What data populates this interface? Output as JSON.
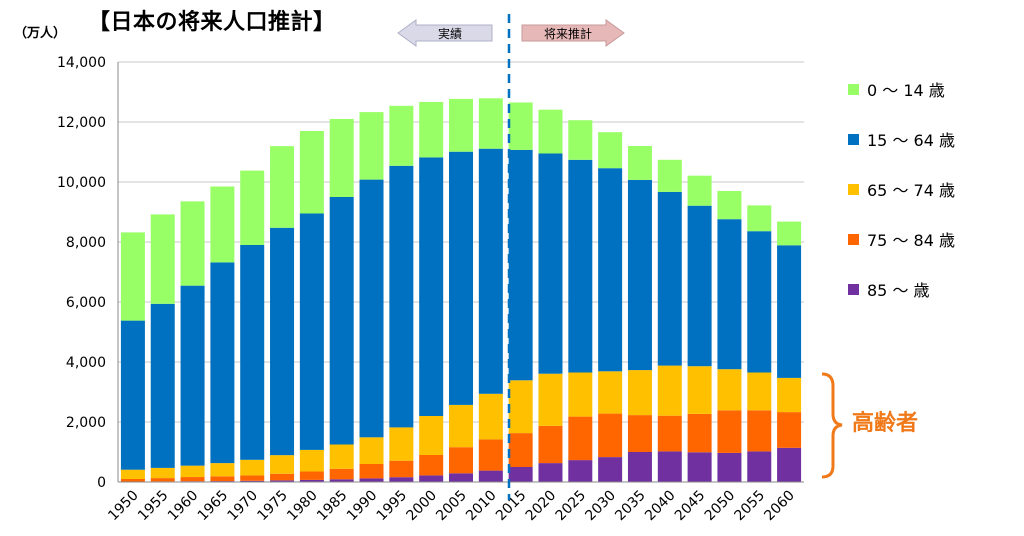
{
  "header": {
    "title": "【日本の将来人口推計】",
    "unit": "（万人）"
  },
  "arrows": {
    "actual_label": "実績",
    "forecast_label": "将来推計"
  },
  "annotation": {
    "elderly_label": "高齢者"
  },
  "colors": {
    "age_0_14": "#99ff66",
    "age_15_64": "#0070c0",
    "age_65_74": "#ffc000",
    "age_75_84": "#ff6600",
    "age_85_plus": "#7030a0",
    "divider": "#0070c0",
    "bracket": "#f07a1a",
    "arrow_actual": "#d9d9e8",
    "arrow_forecast": "#e6b8b8"
  },
  "legend": [
    {
      "label": "0 ～ 14 歳",
      "color": "#99ff66"
    },
    {
      "label": "15 ～ 64 歳",
      "color": "#0070c0"
    },
    {
      "label": "65 ～ 74 歳",
      "color": "#ffc000"
    },
    {
      "label": "75 ～ 84 歳",
      "color": "#ff6600"
    },
    {
      "label": "85 ～ 歳",
      "color": "#7030a0"
    }
  ],
  "chart_data": {
    "type": "bar",
    "stacked": true,
    "categories": [
      "1950",
      "1955",
      "1960",
      "1965",
      "1970",
      "1975",
      "1980",
      "1985",
      "1990",
      "1995",
      "2000",
      "2005",
      "2010",
      "2015",
      "2020",
      "2025",
      "2030",
      "2035",
      "2040",
      "2045",
      "2050",
      "2055",
      "2060"
    ],
    "ylim": [
      0,
      14000
    ],
    "yticks": [
      0,
      2000,
      4000,
      6000,
      8000,
      10000,
      12000,
      14000
    ],
    "ytick_labels": [
      "0",
      "2,000",
      "4,000",
      "6,000",
      "8,000",
      "10,000",
      "12,000",
      "14,000"
    ],
    "grid": true,
    "legend_position": "right",
    "series": [
      {
        "name": "85 ～ 歳",
        "values": [
          10,
          20,
          25,
          30,
          40,
          55,
          70,
          90,
          120,
          160,
          220,
          290,
          380,
          500,
          630,
          730,
          830,
          1000,
          1020,
          990,
          970,
          1020,
          1140
        ]
      },
      {
        "name": "75 ～ 84 歳",
        "values": [
          90,
          110,
          140,
          160,
          180,
          220,
          280,
          350,
          480,
          550,
          680,
          870,
          1040,
          1130,
          1240,
          1450,
          1450,
          1230,
          1190,
          1280,
          1420,
          1370,
          1190
        ]
      },
      {
        "name": "65 ～ 74 歳",
        "values": [
          310,
          340,
          380,
          440,
          520,
          620,
          720,
          810,
          890,
          1110,
          1300,
          1410,
          1520,
          1760,
          1740,
          1470,
          1410,
          1500,
          1670,
          1590,
          1370,
          1260,
          1140
        ]
      },
      {
        "name": "15 ～ 64 歳",
        "values": [
          4970,
          5470,
          6000,
          6690,
          7160,
          7580,
          7880,
          8250,
          8590,
          8720,
          8620,
          8440,
          8170,
          7680,
          7340,
          7090,
          6770,
          6340,
          5790,
          5350,
          5000,
          4710,
          4420
        ]
      },
      {
        "name": "0 ～ 14 歳",
        "values": [
          2940,
          2980,
          2810,
          2530,
          2480,
          2720,
          2750,
          2600,
          2250,
          2000,
          1850,
          1760,
          1680,
          1580,
          1460,
          1320,
          1200,
          1130,
          1070,
          1000,
          940,
          860,
          790
        ]
      }
    ]
  }
}
